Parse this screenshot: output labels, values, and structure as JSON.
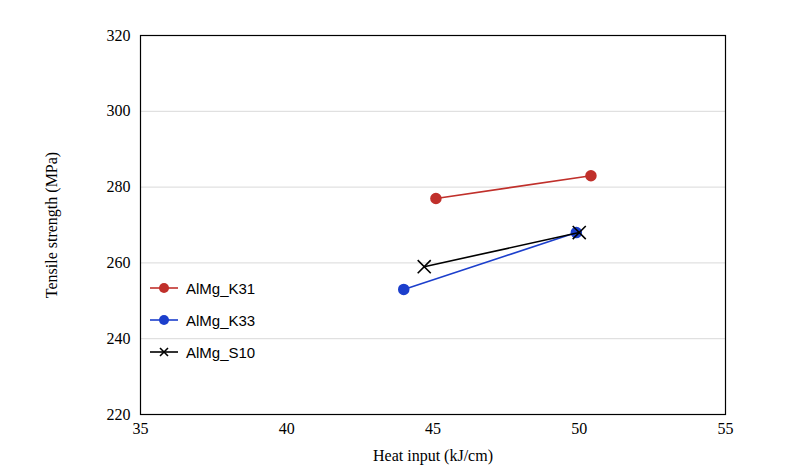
{
  "chart_data": {
    "type": "line",
    "x_label": "Heat input (kJ/cm)",
    "y_label": "Tensile strength (MPa)",
    "xlim": [
      35,
      55
    ],
    "xticks": [
      35,
      40,
      45,
      50,
      55
    ],
    "ylim": [
      220,
      320
    ],
    "yticks": [
      220,
      240,
      260,
      280,
      300,
      320
    ],
    "grid": true,
    "legend": "left",
    "series": [
      {
        "name": "AlMg_K31",
        "color": "#c0302b",
        "marker": "circle",
        "x": [
          45.1,
          50.4
        ],
        "values": [
          277,
          283
        ]
      },
      {
        "name": "AlMg_K33",
        "color": "#1c3fcc",
        "marker": "circle",
        "x": [
          44.0,
          49.9
        ],
        "values": [
          253,
          268
        ]
      },
      {
        "name": "AlMg_S10",
        "color": "#000000",
        "marker": "x",
        "x": [
          44.7,
          50.0
        ],
        "values": [
          259,
          268
        ]
      }
    ]
  }
}
